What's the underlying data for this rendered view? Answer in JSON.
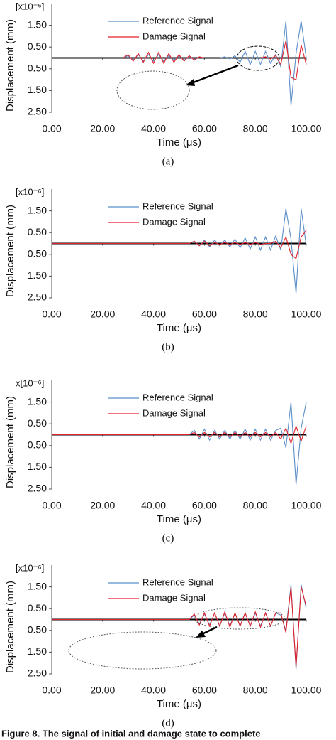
{
  "chart_data": [
    {
      "type": "line",
      "unit_label": "[x10⁻⁶]",
      "ylabel": "Displacement (mm)",
      "xlabel": "Time (μs)",
      "caption": "(a)",
      "x": [
        0,
        20,
        22,
        24,
        26,
        28,
        30,
        32,
        34,
        36,
        38,
        40,
        42,
        44,
        46,
        48,
        50,
        52,
        54,
        56,
        58,
        60,
        62,
        64,
        66,
        68,
        70,
        72,
        74,
        76,
        78,
        80,
        82,
        84,
        86,
        88,
        90,
        92,
        94,
        96,
        98,
        100
      ],
      "series": [
        {
          "name": "Reference Signal",
          "color": "#5b8fc9",
          "values": [
            0,
            0,
            0,
            0,
            0,
            0,
            0.1,
            -0.1,
            0.15,
            -0.15,
            0.15,
            -0.15,
            0.15,
            -0.15,
            0.1,
            -0.1,
            0.1,
            -0.1,
            0.05,
            -0.05,
            0,
            0,
            0,
            0,
            0,
            0.05,
            -0.05,
            0.1,
            -0.2,
            0.3,
            -0.3,
            0.3,
            -0.3,
            0.3,
            -0.25,
            0.15,
            -0.4,
            1.7,
            -2.2,
            0.2,
            1.7,
            0
          ]
        },
        {
          "name": "Damage Signal",
          "color": "#e0202a",
          "values": [
            0,
            0,
            0,
            0,
            0,
            0,
            0.15,
            -0.15,
            0.2,
            -0.2,
            0.25,
            -0.25,
            0.25,
            -0.25,
            0.2,
            -0.2,
            0.15,
            -0.15,
            0.1,
            -0.1,
            0.05,
            0,
            0,
            0,
            0,
            0,
            0,
            0,
            0,
            0,
            0,
            0,
            0,
            0.05,
            -0.05,
            0.1,
            -0.3,
            0.8,
            -0.9,
            -1.0,
            0.6,
            -0.3
          ]
        }
      ],
      "xlim": [
        0,
        100
      ],
      "ylim": [
        -2.5,
        2.5
      ],
      "xticks": [
        {
          "value": 0,
          "label": "0.00"
        },
        {
          "value": 20,
          "label": "20.00"
        },
        {
          "value": 40,
          "label": "40.00"
        },
        {
          "value": 60,
          "label": "60.00"
        },
        {
          "value": 80,
          "label": "80.00"
        },
        {
          "value": 100,
          "label": "100.00"
        }
      ],
      "yticks": [
        {
          "value": 1.5,
          "label": "1.50"
        },
        {
          "value": 0.5,
          "label": "0.50"
        },
        {
          "value": -0.5,
          "label": "0.50"
        },
        {
          "value": -1.5,
          "label": "1.50"
        },
        {
          "value": -2.5,
          "label": "2.50"
        }
      ]
    },
    {
      "type": "line",
      "unit_label": "[x10⁻⁶]",
      "ylabel": "Displacement (mm)",
      "xlabel": "Time (μs)",
      "caption": "(b)",
      "x": [
        0,
        20,
        22,
        24,
        26,
        28,
        30,
        32,
        34,
        36,
        38,
        40,
        42,
        44,
        46,
        48,
        50,
        52,
        54,
        56,
        58,
        60,
        62,
        64,
        66,
        68,
        70,
        72,
        74,
        76,
        78,
        80,
        82,
        84,
        86,
        88,
        90,
        92,
        94,
        96,
        98,
        100
      ],
      "series": [
        {
          "name": "Reference Signal",
          "color": "#5b8fc9",
          "values": [
            0,
            0,
            0,
            0,
            0,
            0,
            0,
            0,
            0,
            0,
            0,
            0,
            0,
            0,
            0,
            0,
            0,
            0,
            0,
            0.1,
            -0.1,
            0.15,
            -0.15,
            0.15,
            -0.1,
            0.15,
            -0.15,
            0.2,
            -0.2,
            0.25,
            -0.25,
            0.3,
            -0.3,
            0.3,
            -0.3,
            0.35,
            -0.3,
            1.6,
            0.2,
            -2.3,
            1.6,
            -0.1
          ]
        },
        {
          "name": "Damage Signal",
          "color": "#e0202a",
          "values": [
            0,
            0,
            0,
            0,
            0,
            0,
            0,
            0,
            0,
            0,
            0,
            0,
            0,
            0,
            0,
            0,
            0,
            0,
            0,
            0.1,
            -0.1,
            0.1,
            -0.1,
            0.05,
            -0.05,
            0.05,
            -0.05,
            0.05,
            -0.05,
            0.05,
            -0.05,
            0.05,
            -0.05,
            0,
            0,
            0.1,
            -0.2,
            0.3,
            -0.5,
            -0.7,
            0.3,
            0.6
          ]
        }
      ],
      "xlim": [
        0,
        100
      ],
      "ylim": [
        -2.5,
        2.5
      ],
      "xticks": [
        {
          "value": 0,
          "label": "0.00"
        },
        {
          "value": 20,
          "label": "20.00"
        },
        {
          "value": 40,
          "label": "40.00"
        },
        {
          "value": 60,
          "label": "60.00"
        },
        {
          "value": 80,
          "label": "80.00"
        },
        {
          "value": 100,
          "label": "100.00"
        }
      ],
      "yticks": [
        {
          "value": 1.5,
          "label": "1.50"
        },
        {
          "value": 0.5,
          "label": "0.50"
        },
        {
          "value": -0.5,
          "label": "0.50"
        },
        {
          "value": -1.5,
          "label": "1.50"
        },
        {
          "value": -2.5,
          "label": "2.50"
        }
      ]
    },
    {
      "type": "line",
      "unit_label": "x[10⁻⁶]",
      "ylabel": "Displacement (mm)",
      "xlabel": "Time (μs)",
      "caption": "(c)",
      "x": [
        0,
        20,
        22,
        24,
        26,
        28,
        30,
        32,
        34,
        36,
        38,
        40,
        42,
        44,
        46,
        48,
        50,
        52,
        54,
        56,
        58,
        60,
        62,
        64,
        66,
        68,
        70,
        72,
        74,
        76,
        78,
        80,
        82,
        84,
        86,
        88,
        90,
        92,
        94,
        96,
        98,
        100
      ],
      "series": [
        {
          "name": "Reference Signal",
          "color": "#5b8fc9",
          "values": [
            0,
            0,
            0,
            0,
            0,
            0,
            0,
            0,
            0,
            0,
            0,
            0,
            0,
            0,
            0,
            0,
            0,
            0,
            0,
            0.2,
            -0.2,
            0.25,
            -0.25,
            0.2,
            -0.2,
            0.2,
            -0.2,
            0.2,
            -0.2,
            0.25,
            -0.25,
            0.25,
            -0.25,
            0.25,
            -0.25,
            0.2,
            0.3,
            -0.6,
            1.5,
            -2.3,
            0.3,
            1.5
          ]
        },
        {
          "name": "Damage Signal",
          "color": "#e0202a",
          "values": [
            0,
            0,
            0,
            0,
            0,
            0,
            0,
            0,
            0,
            0,
            0,
            0,
            0,
            0,
            0,
            0,
            0,
            0,
            0,
            0.1,
            -0.1,
            0.1,
            -0.1,
            0.1,
            -0.1,
            0.1,
            -0.1,
            0.1,
            -0.1,
            0.1,
            -0.1,
            0.1,
            -0.1,
            0.1,
            -0.1,
            0.1,
            -0.2,
            0.3,
            -0.4,
            0.4,
            -0.3,
            0.4
          ]
        }
      ],
      "xlim": [
        0,
        100
      ],
      "ylim": [
        -2.5,
        2.5
      ],
      "xticks": [
        {
          "value": 0,
          "label": "0.00"
        },
        {
          "value": 20,
          "label": "20.00"
        },
        {
          "value": 40,
          "label": "40.00"
        },
        {
          "value": 60,
          "label": "60.00"
        },
        {
          "value": 80,
          "label": "80.00"
        },
        {
          "value": 100,
          "label": "100.00"
        }
      ],
      "yticks": [
        {
          "value": 1.5,
          "label": "1.50"
        },
        {
          "value": 0.5,
          "label": "0.50"
        },
        {
          "value": -0.5,
          "label": "0.50"
        },
        {
          "value": -1.5,
          "label": "1.50"
        },
        {
          "value": -2.5,
          "label": "2.50"
        }
      ]
    },
    {
      "type": "line",
      "unit_label": "[x10⁻⁶]",
      "ylabel": "Displacement (mm)",
      "xlabel": "Time (μs)",
      "caption": "(d)",
      "x": [
        0,
        20,
        22,
        24,
        26,
        28,
        30,
        32,
        34,
        36,
        38,
        40,
        42,
        44,
        46,
        48,
        50,
        52,
        54,
        56,
        58,
        60,
        62,
        64,
        66,
        68,
        70,
        72,
        74,
        76,
        78,
        80,
        82,
        84,
        86,
        88,
        90,
        92,
        94,
        96,
        98,
        100
      ],
      "series": [
        {
          "name": "Reference Signal",
          "color": "#5b8fc9",
          "values": [
            0,
            0,
            0,
            0,
            0,
            0,
            0,
            0,
            0,
            0,
            0,
            0,
            0,
            0,
            0,
            0,
            0,
            0,
            0,
            0.2,
            -0.2,
            0.25,
            -0.25,
            0.3,
            -0.3,
            0.3,
            -0.3,
            0.3,
            -0.3,
            0.3,
            -0.3,
            0.3,
            -0.3,
            0.3,
            -0.3,
            0.3,
            0.2,
            -0.5,
            1.6,
            -2.3,
            1.6,
            0.5
          ]
        },
        {
          "name": "Damage Signal",
          "color": "#e0202a",
          "values": [
            0,
            0,
            0,
            0,
            0,
            0,
            0,
            0,
            0,
            0,
            0,
            0,
            0,
            0,
            0,
            0,
            0,
            0,
            0,
            0.25,
            -0.25,
            0.3,
            -0.3,
            0.3,
            -0.3,
            0.35,
            -0.35,
            0.3,
            -0.3,
            0.3,
            -0.3,
            0.35,
            -0.35,
            0.3,
            -0.3,
            0.3,
            0.3,
            -0.6,
            1.5,
            -2.2,
            1.5,
            0.6
          ]
        }
      ],
      "xlim": [
        0,
        100
      ],
      "ylim": [
        -2.5,
        2.5
      ],
      "xticks": [
        {
          "value": 0,
          "label": "0.00"
        },
        {
          "value": 20,
          "label": "20.00"
        },
        {
          "value": 40,
          "label": "40.00"
        },
        {
          "value": 60,
          "label": "60.00"
        },
        {
          "value": 80,
          "label": "80.00"
        },
        {
          "value": 100,
          "label": "100.00"
        }
      ],
      "yticks": [
        {
          "value": 1.5,
          "label": "1.50"
        },
        {
          "value": 0.5,
          "label": "0.50"
        },
        {
          "value": -0.5,
          "label": "0.50"
        },
        {
          "value": -1.5,
          "label": "1.50"
        },
        {
          "value": -2.5,
          "label": "2.50"
        }
      ]
    }
  ],
  "figure_caption": "Figure 8. The signal of initial and damage state to complete"
}
